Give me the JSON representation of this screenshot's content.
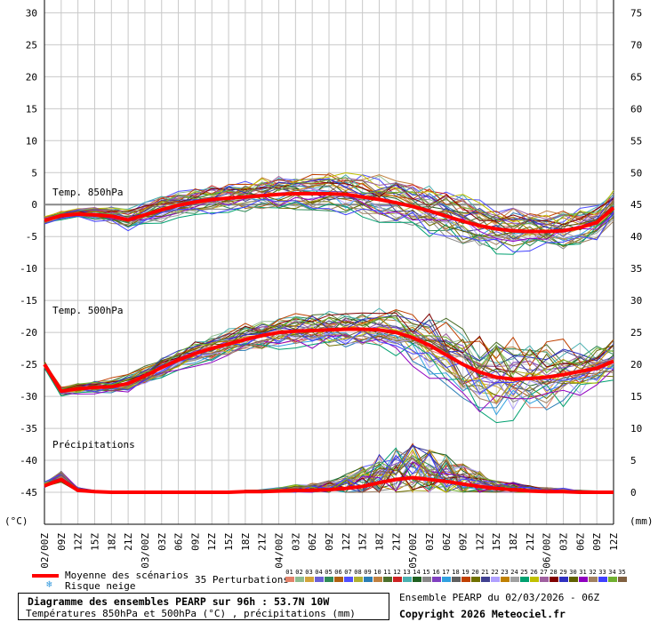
{
  "chart_data": {
    "type": "line",
    "title": "Diagramme des ensembles PEARP sur 96h : 53.7N 10W",
    "subtitle": "Températures 850hPa et 500hPa (°C) , précipitations (mm)",
    "left_axis": {
      "label": "(°C)",
      "range": [
        -50,
        32
      ],
      "ticks": [
        30,
        25,
        20,
        15,
        10,
        5,
        0,
        -5,
        -10,
        -15,
        -20,
        -25,
        -30,
        -35,
        -40,
        -45
      ]
    },
    "right_axis": {
      "label": "(mm)",
      "ticks": [
        75,
        70,
        65,
        60,
        55,
        50,
        45,
        40,
        35,
        30,
        25,
        20,
        15,
        10,
        5,
        0
      ],
      "zero_at_left_value": -45,
      "mm_per_degree": 1
    },
    "x_ticks": [
      "02/00Z",
      "09Z",
      "12Z",
      "15Z",
      "18Z",
      "21Z",
      "03/00Z",
      "03Z",
      "06Z",
      "09Z",
      "12Z",
      "15Z",
      "18Z",
      "21Z",
      "04/00Z",
      "03Z",
      "06Z",
      "09Z",
      "12Z",
      "15Z",
      "18Z",
      "21Z",
      "05/00Z",
      "03Z",
      "06Z",
      "09Z",
      "12Z",
      "15Z",
      "18Z",
      "21Z",
      "06/00Z",
      "03Z",
      "06Z",
      "09Z",
      "12Z"
    ],
    "panels": [
      {
        "label": "Temp. 850hPa",
        "mean": [
          -2.5,
          -1.7,
          -1.5,
          -1.6,
          -1.8,
          -2.4,
          -1.6,
          -0.8,
          -0.1,
          0.4,
          0.8,
          1.0,
          1.2,
          1.4,
          1.6,
          1.7,
          1.7,
          1.7,
          1.6,
          1.2,
          0.8,
          0.3,
          -0.3,
          -1.0,
          -1.8,
          -2.6,
          -3.3,
          -3.8,
          -4.1,
          -4.2,
          -4.2,
          -4.1,
          -3.6,
          -2.8,
          -0.5
        ],
        "spread": [
          0.4,
          0.5,
          0.6,
          0.8,
          1.0,
          1.2,
          1.3,
          1.4,
          1.4,
          1.5,
          1.6,
          1.6,
          1.7,
          1.8,
          1.9,
          2.0,
          2.1,
          2.2,
          2.3,
          2.4,
          2.5,
          2.6,
          2.7,
          2.8,
          2.8,
          2.8,
          2.7,
          2.6,
          2.5,
          2.4,
          2.3,
          2.2,
          2.1,
          2.0,
          1.8
        ]
      },
      {
        "label": "Temp. 500hPa",
        "mean": [
          -25.0,
          -29.2,
          -28.8,
          -28.6,
          -28.5,
          -28.0,
          -26.8,
          -25.5,
          -24.3,
          -23.3,
          -22.5,
          -21.8,
          -21.1,
          -20.5,
          -20.0,
          -19.8,
          -19.7,
          -19.6,
          -19.5,
          -19.5,
          -19.6,
          -20.0,
          -20.8,
          -22.0,
          -23.5,
          -25.0,
          -26.2,
          -27.0,
          -27.3,
          -27.2,
          -27.0,
          -26.6,
          -26.1,
          -25.6,
          -24.5
        ],
        "spread": [
          0.4,
          0.6,
          0.7,
          0.8,
          0.9,
          1.0,
          1.1,
          1.2,
          1.3,
          1.4,
          1.5,
          1.6,
          1.7,
          1.8,
          1.8,
          1.9,
          2.0,
          2.0,
          2.1,
          2.2,
          2.3,
          2.6,
          3.0,
          3.5,
          4.0,
          4.5,
          4.8,
          4.8,
          4.6,
          4.3,
          4.0,
          3.6,
          3.2,
          2.8,
          2.4
        ]
      },
      {
        "label": "Précipitations",
        "unit": "mm",
        "mean": [
          1.0,
          2.0,
          0.3,
          0.1,
          0.0,
          0.0,
          0.0,
          0.0,
          0.0,
          0.0,
          0.0,
          0.0,
          0.1,
          0.1,
          0.2,
          0.3,
          0.3,
          0.4,
          0.6,
          0.9,
          1.5,
          2.0,
          2.3,
          2.0,
          1.7,
          1.3,
          0.9,
          0.6,
          0.4,
          0.2,
          0.1,
          0.1,
          0.0,
          0.0,
          0.0
        ],
        "spread": [
          0.6,
          1.2,
          0.4,
          0.2,
          0.1,
          0.1,
          0.1,
          0.1,
          0.1,
          0.1,
          0.1,
          0.1,
          0.2,
          0.3,
          0.5,
          0.8,
          1.0,
          1.3,
          2.0,
          3.0,
          4.0,
          4.5,
          5.0,
          4.5,
          3.8,
          3.0,
          2.3,
          1.6,
          1.1,
          0.8,
          0.6,
          0.5,
          0.3,
          0.2,
          0.1
        ]
      }
    ],
    "mean_color": "#ff0000",
    "member_colors": [
      "#e3826a",
      "#8fbc8f",
      "#d2a43a",
      "#6b5fd6",
      "#2e8b57",
      "#b06010",
      "#5050ff",
      "#b0b030",
      "#2a7db5",
      "#c08040",
      "#4b6f2b",
      "#cc2222",
      "#4ab0b0",
      "#206020",
      "#888888",
      "#8040c0",
      "#30a0e0",
      "#5f5f5f",
      "#c04000",
      "#707000",
      "#404090",
      "#b0a0ff",
      "#c08000",
      "#a0a0a0",
      "#00a070",
      "#c0c000",
      "#a060a0",
      "#800000",
      "#3030c0",
      "#606000",
      "#9000c0",
      "#a08060",
      "#4040ff",
      "#70b030",
      "#806040"
    ]
  },
  "legend": {
    "mean_label": "Moyenne des scénarios",
    "snow_label": "Risque neige",
    "snow_icon": "snowflake-icon",
    "perturbations_label": "35 Perturbations",
    "perturbation_codes": [
      "01",
      "02",
      "03",
      "04",
      "05",
      "06",
      "07",
      "08",
      "09",
      "10",
      "11",
      "12",
      "13",
      "14",
      "15",
      "16",
      "17",
      "18",
      "19",
      "20",
      "21",
      "22",
      "23",
      "24",
      "25",
      "26",
      "27",
      "28",
      "29",
      "30",
      "31",
      "32",
      "33",
      "34",
      "35"
    ]
  },
  "footer": {
    "title": "Diagramme des ensembles PEARP sur 96h : 53.7N 10W",
    "subtitle": "Températures 850hPa et 500hPa (°C) , précipitations (mm)",
    "run": "Ensemble PEARP du 02/03/2026 - 06Z",
    "copyright": "Copyright 2026 Meteociel.fr"
  }
}
